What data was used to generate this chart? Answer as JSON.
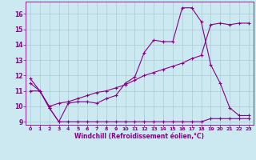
{
  "xlabel": "Windchill (Refroidissement éolien,°C)",
  "bg_color": "#cce8f0",
  "grid_color": "#a8ccd4",
  "line_color": "#880088",
  "xlim": [
    -0.5,
    23.5
  ],
  "ylim": [
    8.8,
    16.8
  ],
  "yticks": [
    9,
    10,
    11,
    12,
    13,
    14,
    15,
    16
  ],
  "xticks": [
    0,
    1,
    2,
    3,
    4,
    5,
    6,
    7,
    8,
    9,
    10,
    11,
    12,
    13,
    14,
    15,
    16,
    17,
    18,
    19,
    20,
    21,
    22,
    23
  ],
  "line1_x": [
    0,
    1,
    2,
    3,
    4,
    5,
    6,
    7,
    8,
    9,
    10,
    11,
    12,
    13,
    14,
    15,
    16,
    17,
    18,
    19,
    20,
    21,
    22,
    23
  ],
  "line1_y": [
    11.8,
    11.0,
    9.9,
    9.0,
    10.2,
    10.3,
    10.3,
    10.2,
    10.5,
    10.7,
    11.5,
    11.9,
    13.5,
    14.3,
    14.2,
    14.2,
    16.4,
    16.4,
    15.5,
    12.7,
    11.5,
    9.9,
    9.4,
    9.4
  ],
  "line2_x": [
    0,
    1,
    2,
    3,
    4,
    5,
    6,
    7,
    8,
    9,
    10,
    11,
    12,
    13,
    14,
    15,
    16,
    17,
    18,
    19,
    20,
    21,
    22,
    23
  ],
  "line2_y": [
    11.0,
    11.0,
    9.9,
    9.0,
    9.0,
    9.0,
    9.0,
    9.0,
    9.0,
    9.0,
    9.0,
    9.0,
    9.0,
    9.0,
    9.0,
    9.0,
    9.0,
    9.0,
    9.0,
    9.2,
    9.2,
    9.2,
    9.2,
    9.2
  ],
  "line3_x": [
    0,
    1,
    2,
    3,
    4,
    5,
    6,
    7,
    8,
    9,
    10,
    11,
    12,
    13,
    14,
    15,
    16,
    17,
    18,
    19,
    20,
    21,
    22,
    23
  ],
  "line3_y": [
    11.5,
    11.0,
    10.0,
    10.2,
    10.3,
    10.5,
    10.7,
    10.9,
    11.0,
    11.2,
    11.4,
    11.7,
    12.0,
    12.2,
    12.4,
    12.6,
    12.8,
    13.1,
    13.3,
    15.3,
    15.4,
    15.3,
    15.4,
    15.4
  ]
}
